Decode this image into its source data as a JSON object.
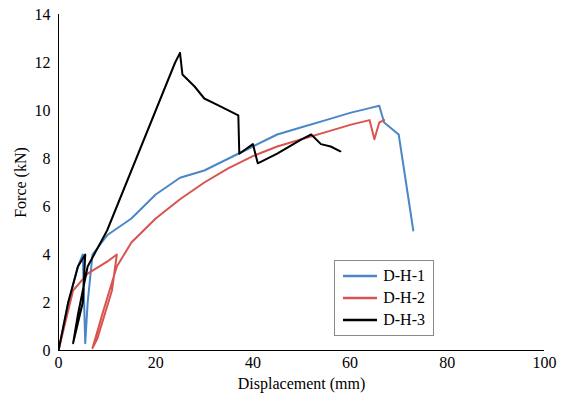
{
  "chart_data": {
    "type": "line",
    "x_label": "Displacement (mm)",
    "y_label": "Force (kN)",
    "xlim": [
      0,
      100
    ],
    "xticks": [
      0,
      20,
      40,
      60,
      80,
      100
    ],
    "ylim": [
      0,
      14
    ],
    "yticks": [
      0,
      2,
      4,
      6,
      8,
      10,
      12,
      14
    ],
    "grid": false,
    "legend": "lower right",
    "series": [
      {
        "name": "D-H-1",
        "color": "#4a86c8",
        "x": [
          0,
          2,
          4,
          5,
          5.5,
          6,
          7,
          10,
          15,
          20,
          25,
          30,
          35,
          40,
          45,
          50,
          55,
          60,
          64,
          66,
          67,
          70,
          73
        ],
        "values": [
          0,
          2,
          3.5,
          4,
          0.3,
          2,
          4,
          4.8,
          5.5,
          6.5,
          7.2,
          7.5,
          8.0,
          8.5,
          9.0,
          9.3,
          9.6,
          9.9,
          10.1,
          10.2,
          9.5,
          9.0,
          5.0
        ]
      },
      {
        "name": "D-H-2",
        "color": "#d9534f",
        "x": [
          0,
          3,
          6,
          10,
          12,
          11,
          8,
          7,
          9,
          12,
          15,
          20,
          25,
          30,
          35,
          40,
          45,
          50,
          55,
          60,
          64,
          65,
          66,
          67
        ],
        "values": [
          0,
          2.5,
          3.2,
          3.7,
          4,
          2.5,
          0.5,
          0.1,
          1.5,
          3.5,
          4.5,
          5.5,
          6.3,
          7.0,
          7.6,
          8.1,
          8.5,
          8.8,
          9.1,
          9.4,
          9.6,
          8.8,
          9.5,
          9.6
        ]
      },
      {
        "name": "D-H-3",
        "color": "#000000",
        "x": [
          0,
          2,
          4,
          5.5,
          5,
          3,
          4,
          6,
          10,
          15,
          20,
          24,
          25,
          25.5,
          28,
          30,
          33,
          37,
          37.2,
          40,
          41,
          45,
          50,
          52,
          54,
          56,
          58
        ],
        "values": [
          0,
          2,
          3.5,
          4,
          2,
          0.3,
          1.5,
          3.5,
          5,
          7.5,
          10,
          12,
          12.4,
          11.5,
          11,
          10.5,
          10.2,
          9.8,
          8.2,
          8.6,
          7.8,
          8.2,
          8.8,
          9,
          8.6,
          8.5,
          8.3
        ]
      }
    ]
  }
}
